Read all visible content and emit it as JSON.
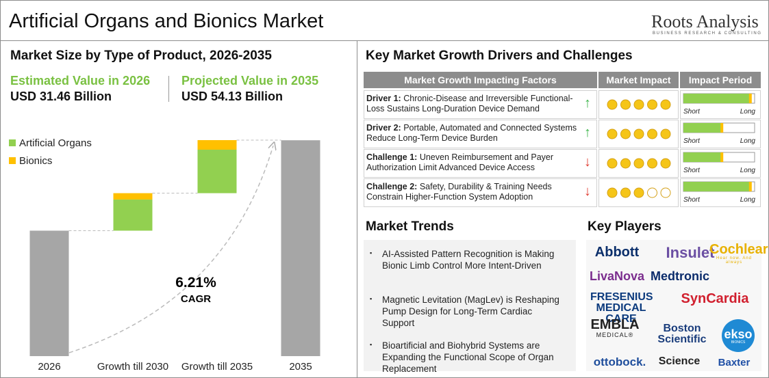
{
  "header": {
    "title": "Artificial Organs and Bionics Market",
    "brand": "Roots Analysis",
    "brand_tagline": "BUSINESS RESEARCH & CONSULTING"
  },
  "market_size": {
    "title": "Market Size by Type of Product, 2026-2035",
    "estimated": {
      "label": "Estimated Value in 2026",
      "value": "USD 31.46 Billion"
    },
    "projected": {
      "label": "Projected Value in 2035",
      "value": "USD 54.13 Billion"
    }
  },
  "chart_data": {
    "type": "waterfall",
    "categories": [
      "2026",
      "Growth till  2030",
      "Growth till  2035",
      "2035"
    ],
    "totals": {
      "color": "#a6a6a6",
      "values": [
        31.46,
        null,
        null,
        54.13
      ]
    },
    "series": [
      {
        "name": "Artificial Organs",
        "color": "#92d050",
        "values": [
          null,
          7.8,
          10.9,
          null
        ]
      },
      {
        "name": "Bionics",
        "color": "#ffc000",
        "values": [
          null,
          1.6,
          2.4,
          null
        ]
      }
    ],
    "annotation": {
      "value": "6.21%",
      "label": "CAGR"
    }
  },
  "drivers": {
    "title": "Key Market Growth Drivers and Challenges",
    "columns": [
      "Market Growth Impacting Factors",
      "Market Impact",
      "Impact Period"
    ],
    "period_labels": [
      "Short",
      "Long"
    ],
    "rows": [
      {
        "label": "Driver 1:",
        "text": "Chronic-Disease and Irreversible Functional-Loss Sustains Long-Duration Device Demand",
        "direction": "up",
        "impact": 5,
        "period": 0.95
      },
      {
        "label": "Driver 2:",
        "text": "Portable, Automated and Connected Systems Reduce Long-Term Device Burden",
        "direction": "up",
        "impact": 5,
        "period": 0.55
      },
      {
        "label": "Challenge 1:",
        "text": "Uneven Reimbursement and Payer Authorization Limit Advanced Device Access",
        "direction": "down",
        "impact": 5,
        "period": 0.55
      },
      {
        "label": "Challenge 2:",
        "text": "Safety, Durability & Training  Needs Constrain Higher-Function System Adoption",
        "direction": "down",
        "impact": 3,
        "period": 0.95
      }
    ]
  },
  "trends": {
    "title": "Market Trends",
    "items": [
      "AI-Assisted Pattern Recognition is Making Bionic Limb Control More Intent-Driven",
      "Magnetic Levitation (MagLev) is Reshaping Pump Design for Long-Term Cardiac Support",
      "Bioartificial and Biohybrid Systems are Expanding the Functional Scope of Organ Replacement"
    ]
  },
  "players": {
    "title": "Key Players",
    "items": [
      {
        "name": "Abbott",
        "color": "#0b2f6b"
      },
      {
        "name": "Insulet",
        "color": "#6b4fa3"
      },
      {
        "name": "Cochlear",
        "color": "#e8b100",
        "sub": "Hear now. And always"
      },
      {
        "name": "LivaNova",
        "color": "#7b2d8e"
      },
      {
        "name": "Medtronic",
        "color": "#0a2b6b"
      },
      {
        "name": "FRESENIUS MEDICAL CARE",
        "color": "#0b3a7d"
      },
      {
        "name": "SynCardia",
        "color": "#d1202f"
      },
      {
        "name": "EMBLA",
        "color": "#222222",
        "sub": "MEDICAL®"
      },
      {
        "name": "Boston Scientific",
        "color": "#1a3d7c"
      },
      {
        "name": "ekso",
        "color": "#1f8ad4",
        "sub": "BIONICS"
      },
      {
        "name": "ottobock.",
        "color": "#1f4e9c"
      },
      {
        "name": "Science",
        "color": "#222222"
      },
      {
        "name": "Baxter",
        "color": "#1f4fa5"
      }
    ]
  }
}
